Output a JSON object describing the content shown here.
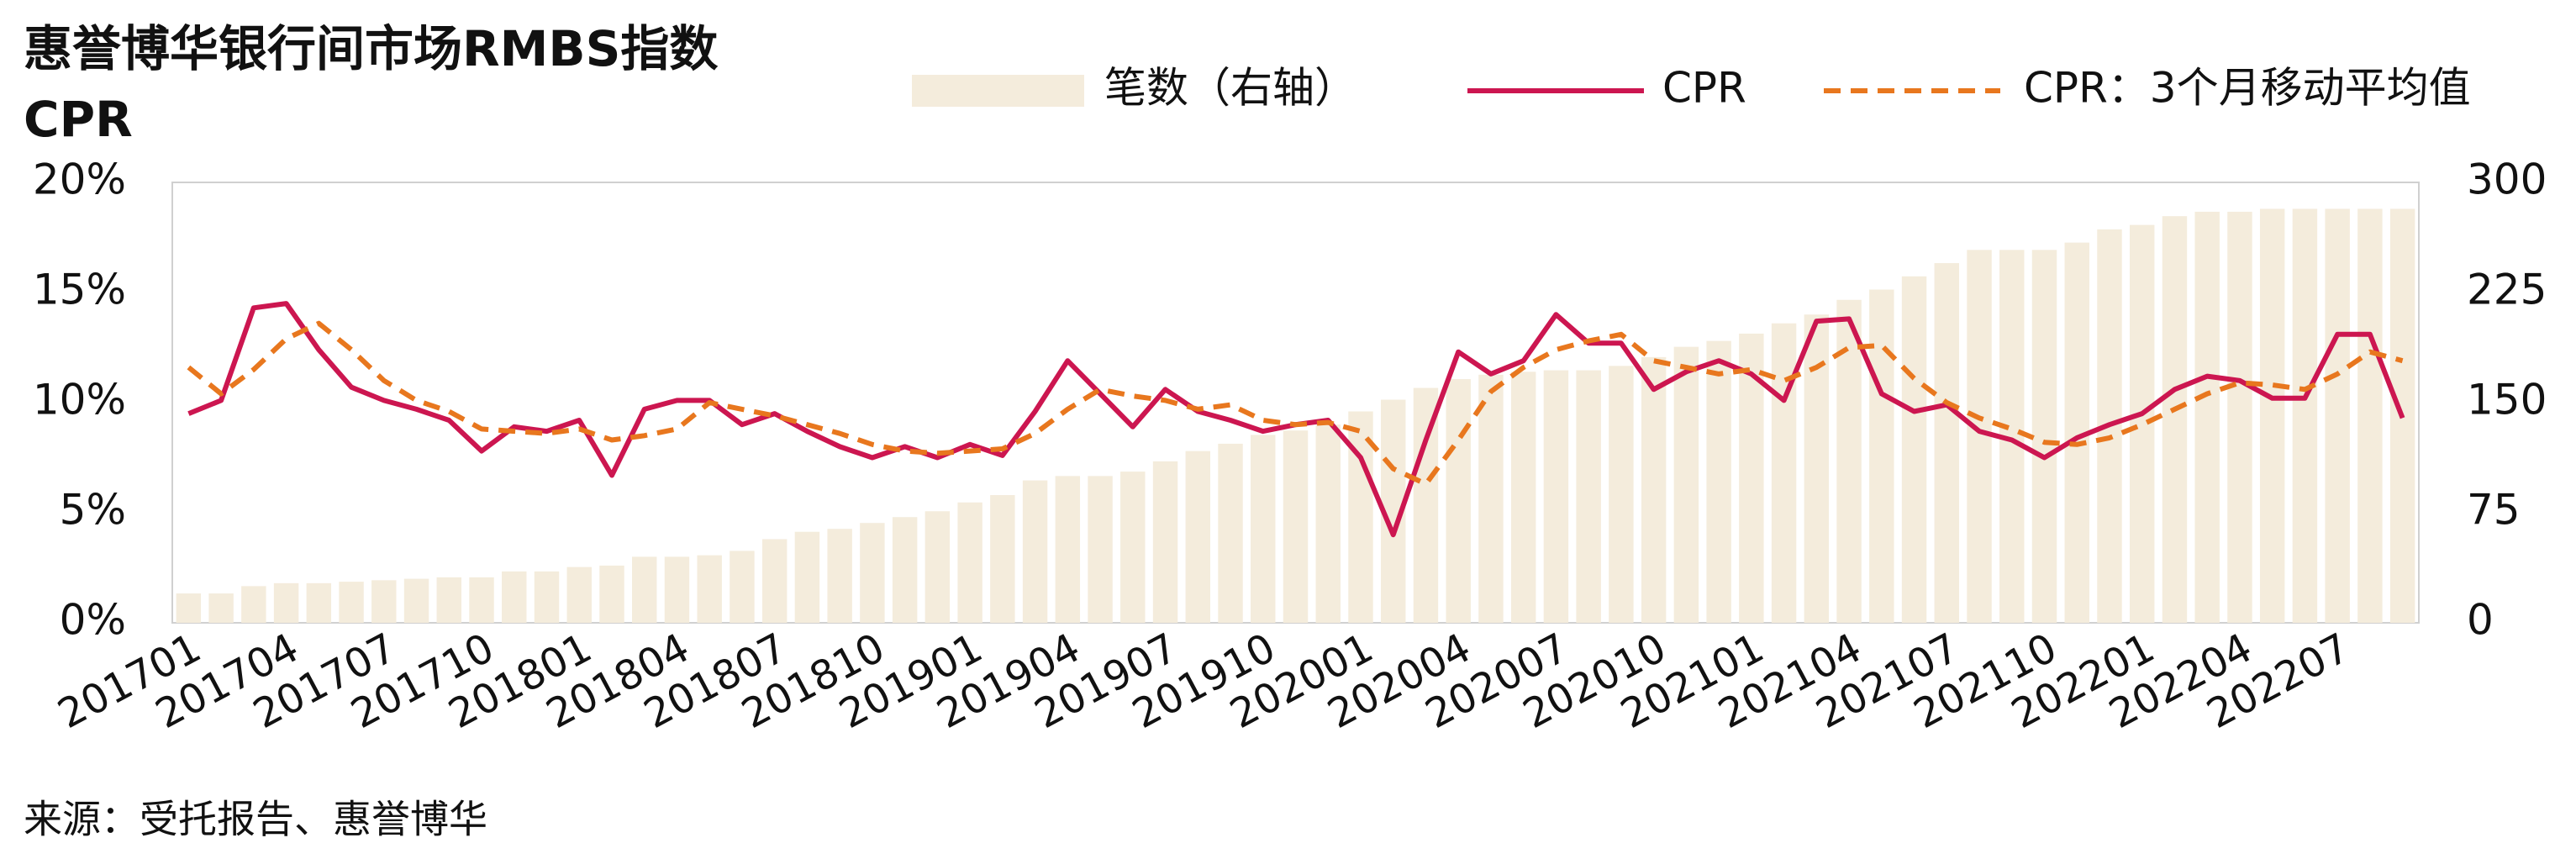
{
  "chart_data": {
    "type": "bar_line",
    "title": "惠誉博华银行间市场RMBS指数",
    "subtitle": "CPR",
    "source": "来源：受托报告、惠誉博华",
    "legend": "top",
    "categories": [
      "201701",
      null,
      null,
      "201704",
      null,
      null,
      "201707",
      null,
      null,
      "201710",
      null,
      null,
      "201801",
      null,
      null,
      "201804",
      null,
      null,
      "201807",
      null,
      null,
      "201810",
      null,
      null,
      "201901",
      null,
      null,
      "201904",
      null,
      null,
      "201907",
      null,
      null,
      "201910",
      null,
      null,
      "202001",
      null,
      null,
      "202004",
      null,
      null,
      "202007",
      null,
      null,
      "202010",
      null,
      null,
      "202101",
      null,
      null,
      "202104",
      null,
      null,
      "202107",
      null,
      null,
      "202110",
      null,
      null,
      "202201",
      null,
      null,
      "202204",
      null,
      null,
      "202207",
      null,
      null
    ],
    "ylim": [
      0,
      20
    ],
    "yticks": [
      {
        "value": 0,
        "label": "0%"
      },
      {
        "value": 5,
        "label": "5%"
      },
      {
        "value": 10,
        "label": "10%"
      },
      {
        "value": 15,
        "label": "15%"
      },
      {
        "value": 20,
        "label": "20%"
      }
    ],
    "y2lim": [
      0,
      300
    ],
    "y2ticks": [
      0,
      75,
      150,
      225,
      300
    ],
    "series": [
      {
        "name": "笔数（右轴）",
        "type": "bar",
        "axis": "y2",
        "color": "#f4ecdc",
        "values": [
          20,
          20,
          25,
          27,
          27,
          28,
          29,
          30,
          31,
          31,
          35,
          35,
          38,
          39,
          45,
          45,
          46,
          49,
          57,
          62,
          64,
          68,
          72,
          76,
          82,
          87,
          97,
          100,
          100,
          103,
          110,
          117,
          122,
          128,
          131,
          135,
          144,
          152,
          160,
          166,
          169,
          171,
          172,
          172,
          175,
          181,
          188,
          192,
          197,
          204,
          210,
          220,
          227,
          236,
          245,
          254,
          254,
          254,
          259,
          268,
          271,
          277,
          280,
          280,
          282,
          282,
          282,
          282,
          282
        ]
      },
      {
        "name": "CPR",
        "type": "line",
        "color": "#cc1650",
        "dash": false,
        "values": [
          9.5,
          10.1,
          14.3,
          14.5,
          12.4,
          10.7,
          10.1,
          9.7,
          9.2,
          7.8,
          8.9,
          8.7,
          9.2,
          6.7,
          9.7,
          10.1,
          10.1,
          9.0,
          9.5,
          8.7,
          8.0,
          7.5,
          8.0,
          7.5,
          8.1,
          7.6,
          9.6,
          11.9,
          10.4,
          8.9,
          10.6,
          9.6,
          9.2,
          8.7,
          9.0,
          9.2,
          7.5,
          4.0,
          8.3,
          12.3,
          11.3,
          11.9,
          14.0,
          12.7,
          12.7,
          10.6,
          11.4,
          11.9,
          11.3,
          10.1,
          13.7,
          13.8,
          10.4,
          9.6,
          9.9,
          8.7,
          8.3,
          7.5,
          8.4,
          9.0,
          9.5,
          10.6,
          11.2,
          11.0,
          10.2,
          10.2,
          13.1,
          13.1,
          9.3
        ]
      },
      {
        "name": "CPR：3个月移动平均值",
        "type": "line",
        "color": "#e8771e",
        "dash": true,
        "values": [
          11.6,
          10.4,
          11.5,
          12.9,
          13.6,
          12.4,
          11.0,
          10.1,
          9.6,
          8.8,
          8.7,
          8.6,
          8.8,
          8.3,
          8.5,
          8.8,
          10.0,
          9.7,
          9.4,
          9.0,
          8.6,
          8.1,
          7.8,
          7.7,
          7.8,
          7.9,
          8.6,
          9.7,
          10.6,
          10.3,
          10.1,
          9.7,
          9.9,
          9.2,
          9.0,
          9.1,
          8.7,
          7.0,
          6.3,
          8.3,
          10.5,
          11.6,
          12.4,
          12.8,
          13.1,
          11.9,
          11.6,
          11.3,
          11.5,
          11.0,
          11.6,
          12.5,
          12.6,
          11.1,
          10.0,
          9.3,
          8.8,
          8.2,
          8.1,
          8.4,
          9.0,
          9.7,
          10.4,
          10.9,
          10.8,
          10.6,
          11.3,
          12.3,
          11.9
        ]
      }
    ]
  }
}
